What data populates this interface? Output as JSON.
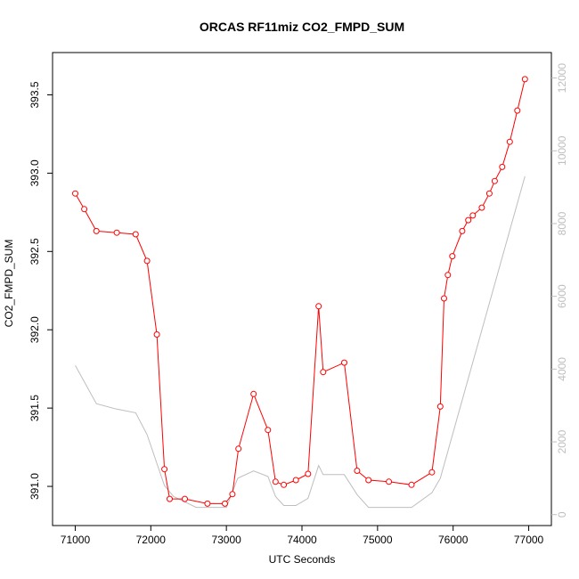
{
  "chart_data": {
    "type": "line",
    "title": "ORCAS RF11miz CO2_FMPD_SUM",
    "xlabel": "UTC Seconds",
    "ylabel": "CO2_FMPD_SUM",
    "xlim": [
      70700,
      77300
    ],
    "ylim": [
      390.75,
      393.77
    ],
    "y2lim": [
      -300,
      12700
    ],
    "xticks": [
      "71000",
      "72000",
      "73000",
      "74000",
      "75000",
      "76000",
      "77000"
    ],
    "yticks": [
      "391.0",
      "391.5",
      "392.0",
      "392.5",
      "393.0",
      "393.5"
    ],
    "y2ticks": [
      "0",
      "2000",
      "4000",
      "6000",
      "8000",
      "10000",
      "12000"
    ],
    "series": [
      {
        "color": "#ff0000",
        "marker": "circle",
        "axis": "left",
        "x": [
          71000,
          71120,
          71280,
          71550,
          71800,
          71950,
          72080,
          72180,
          72250,
          72450,
          72750,
          72980,
          73080,
          73160,
          73360,
          73550,
          73650,
          73760,
          73920,
          74080,
          74220,
          74280,
          74560,
          74730,
          74880,
          75150,
          75450,
          75720,
          75830,
          75880,
          75930,
          75990,
          76120,
          76200,
          76260,
          76380,
          76480,
          76550,
          76650,
          76750,
          76850,
          76950
        ],
        "y": [
          392.87,
          392.77,
          392.63,
          392.62,
          392.61,
          392.44,
          391.97,
          391.11,
          390.92,
          390.92,
          390.89,
          390.89,
          390.95,
          391.24,
          391.59,
          391.36,
          391.03,
          391.01,
          391.04,
          391.08,
          392.15,
          391.73,
          391.79,
          391.1,
          391.04,
          391.03,
          391.01,
          391.09,
          391.51,
          392.2,
          392.35,
          392.47,
          392.63,
          392.7,
          392.73,
          392.78,
          392.87,
          392.95,
          393.04,
          393.2,
          393.4,
          393.6
        ]
      },
      {
        "color": "#bebebe",
        "marker": "none",
        "axis": "right",
        "x": [
          71000,
          71280,
          71550,
          71800,
          71950,
          72180,
          72300,
          72600,
          73000,
          73150,
          73360,
          73550,
          73650,
          73760,
          73920,
          74080,
          74220,
          74280,
          74560,
          74730,
          74880,
          75150,
          75450,
          75720,
          75830,
          76950
        ],
        "y": [
          4100,
          3050,
          2900,
          2800,
          2200,
          800,
          500,
          200,
          200,
          1000,
          1200,
          1050,
          500,
          250,
          250,
          450,
          1350,
          1100,
          1100,
          550,
          200,
          200,
          200,
          600,
          1000,
          9300
        ]
      }
    ],
    "grid": false,
    "legend": "none"
  }
}
